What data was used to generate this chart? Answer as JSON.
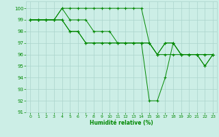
{
  "title": "",
  "xlabel": "Humidité relative (%)",
  "ylabel": "",
  "bg_color": "#cceee6",
  "grid_color": "#aad4cc",
  "line_color": "#008800",
  "marker_color": "#008800",
  "xlim": [
    -0.5,
    23.5
  ],
  "ylim": [
    91,
    100.6
  ],
  "yticks": [
    91,
    92,
    93,
    94,
    95,
    96,
    97,
    98,
    99,
    100
  ],
  "xticks": [
    0,
    1,
    2,
    3,
    4,
    5,
    6,
    7,
    8,
    9,
    10,
    11,
    12,
    13,
    14,
    15,
    16,
    17,
    18,
    19,
    20,
    21,
    22,
    23
  ],
  "series": [
    [
      99,
      99,
      99,
      99,
      100,
      100,
      100,
      100,
      100,
      100,
      100,
      100,
      100,
      100,
      100,
      97,
      96,
      97,
      97,
      96,
      96,
      96,
      96,
      96
    ],
    [
      99,
      99,
      99,
      99,
      100,
      99,
      99,
      99,
      98,
      98,
      98,
      97,
      97,
      97,
      97,
      92,
      92,
      94,
      97,
      96,
      96,
      96,
      95,
      96
    ],
    [
      99,
      99,
      99,
      99,
      99,
      98,
      98,
      97,
      97,
      97,
      97,
      97,
      97,
      97,
      97,
      97,
      96,
      97,
      97,
      96,
      96,
      96,
      96,
      96
    ],
    [
      99,
      99,
      99,
      99,
      99,
      98,
      98,
      97,
      97,
      97,
      97,
      97,
      97,
      97,
      97,
      97,
      96,
      96,
      96,
      96,
      96,
      96,
      95,
      96
    ]
  ]
}
